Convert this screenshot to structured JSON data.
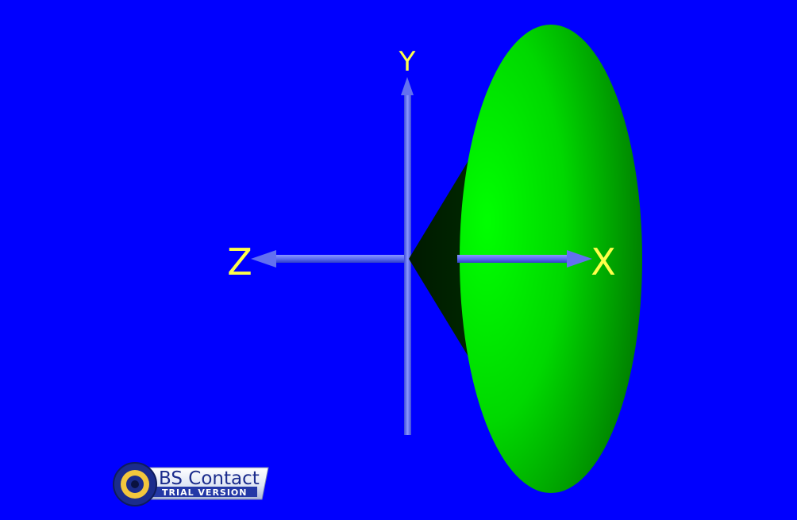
{
  "scene": {
    "background_color": "#0000ff",
    "axis_color": "#5b6cf2",
    "label_color": "#ffff4a",
    "cone_color": "#00ff00"
  },
  "axes": {
    "x_label": "X",
    "y_label": "Y",
    "z_label": "Z"
  },
  "logo": {
    "brand": "BS Contact",
    "subtitle": "TRIAL VERSION"
  }
}
